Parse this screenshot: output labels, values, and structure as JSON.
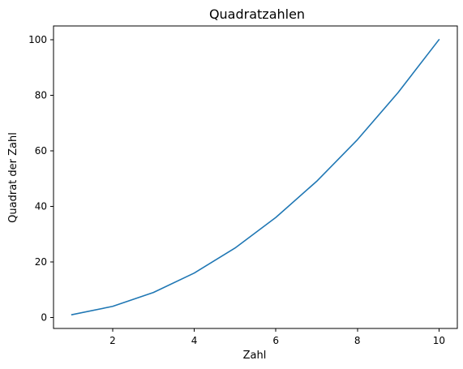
{
  "chart_data": {
    "type": "line",
    "title": "Quadratzahlen",
    "xlabel": "Zahl",
    "ylabel": "Quadrat der Zahl",
    "x": [
      1,
      2,
      3,
      4,
      5,
      6,
      7,
      8,
      9,
      10
    ],
    "series": [
      {
        "values": [
          1,
          4,
          9,
          16,
          25,
          36,
          49,
          64,
          81,
          100
        ],
        "color": "#1f77b4"
      }
    ],
    "xlim": [
      0.55,
      10.45
    ],
    "ylim": [
      -3.95,
      104.95
    ],
    "xticks": [
      2,
      4,
      6,
      8,
      10
    ],
    "yticks": [
      0,
      20,
      40,
      60,
      80,
      100
    ],
    "grid": false,
    "legend": "none"
  }
}
